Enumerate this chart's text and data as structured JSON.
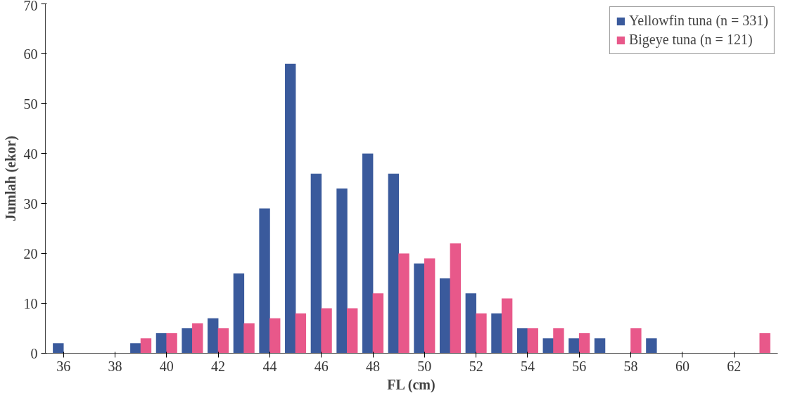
{
  "chart_data": {
    "type": "bar",
    "xlabel": "FL (cm)",
    "ylabel": "Jumlah (ekor)",
    "categories": [
      "36",
      null,
      "38",
      null,
      "40",
      null,
      "42",
      null,
      "44",
      null,
      "46",
      null,
      "48",
      null,
      "50",
      null,
      "52",
      null,
      "54",
      null,
      "56",
      null,
      "58",
      null,
      "60",
      null,
      "62",
      null
    ],
    "series": [
      {
        "name": "Yellowfin tuna (n = 331)",
        "color": "#3a5a9c",
        "values": [
          2,
          0,
          0,
          2,
          4,
          5,
          7,
          16,
          29,
          58,
          36,
          33,
          40,
          36,
          18,
          15,
          12,
          8,
          5,
          3,
          3,
          3,
          0,
          3,
          0,
          0,
          0,
          0
        ]
      },
      {
        "name": "Bigeye tuna (n = 121)",
        "color": "#e8588a",
        "values": [
          0,
          0,
          0,
          3,
          4,
          6,
          5,
          6,
          7,
          8,
          9,
          9,
          12,
          20,
          19,
          22,
          8,
          11,
          5,
          5,
          4,
          0,
          5,
          0,
          0,
          0,
          0,
          4
        ]
      }
    ],
    "ylim": [
      0,
      70
    ],
    "yticks": [
      0,
      10,
      20,
      30,
      40,
      50,
      60,
      70
    ],
    "grid": false,
    "legend": "top right"
  }
}
